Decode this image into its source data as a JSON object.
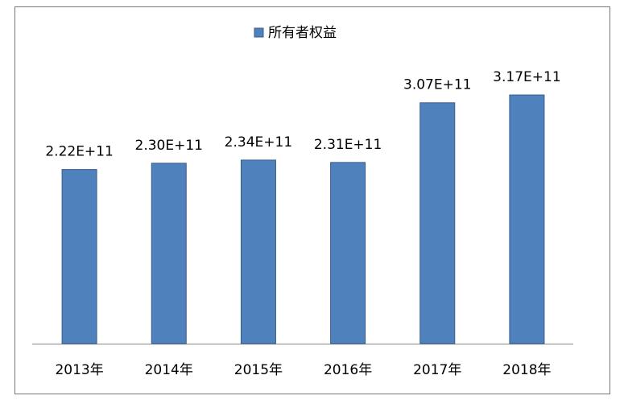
{
  "chart_data": {
    "type": "bar",
    "categories": [
      "2013年",
      "2014年",
      "2015年",
      "2016年",
      "2017年",
      "2018年"
    ],
    "series": [
      {
        "name": "所有者权益",
        "color": "#4f81bd",
        "values": [
          222000000000,
          230000000000,
          234000000000,
          231000000000,
          307000000000,
          317000000000
        ],
        "value_labels": [
          "2.22E+11",
          "2.30E+11",
          "2.34E+11",
          "2.31E+11",
          "3.07E+11",
          "3.17E+11"
        ]
      }
    ],
    "legend": "top"
  }
}
